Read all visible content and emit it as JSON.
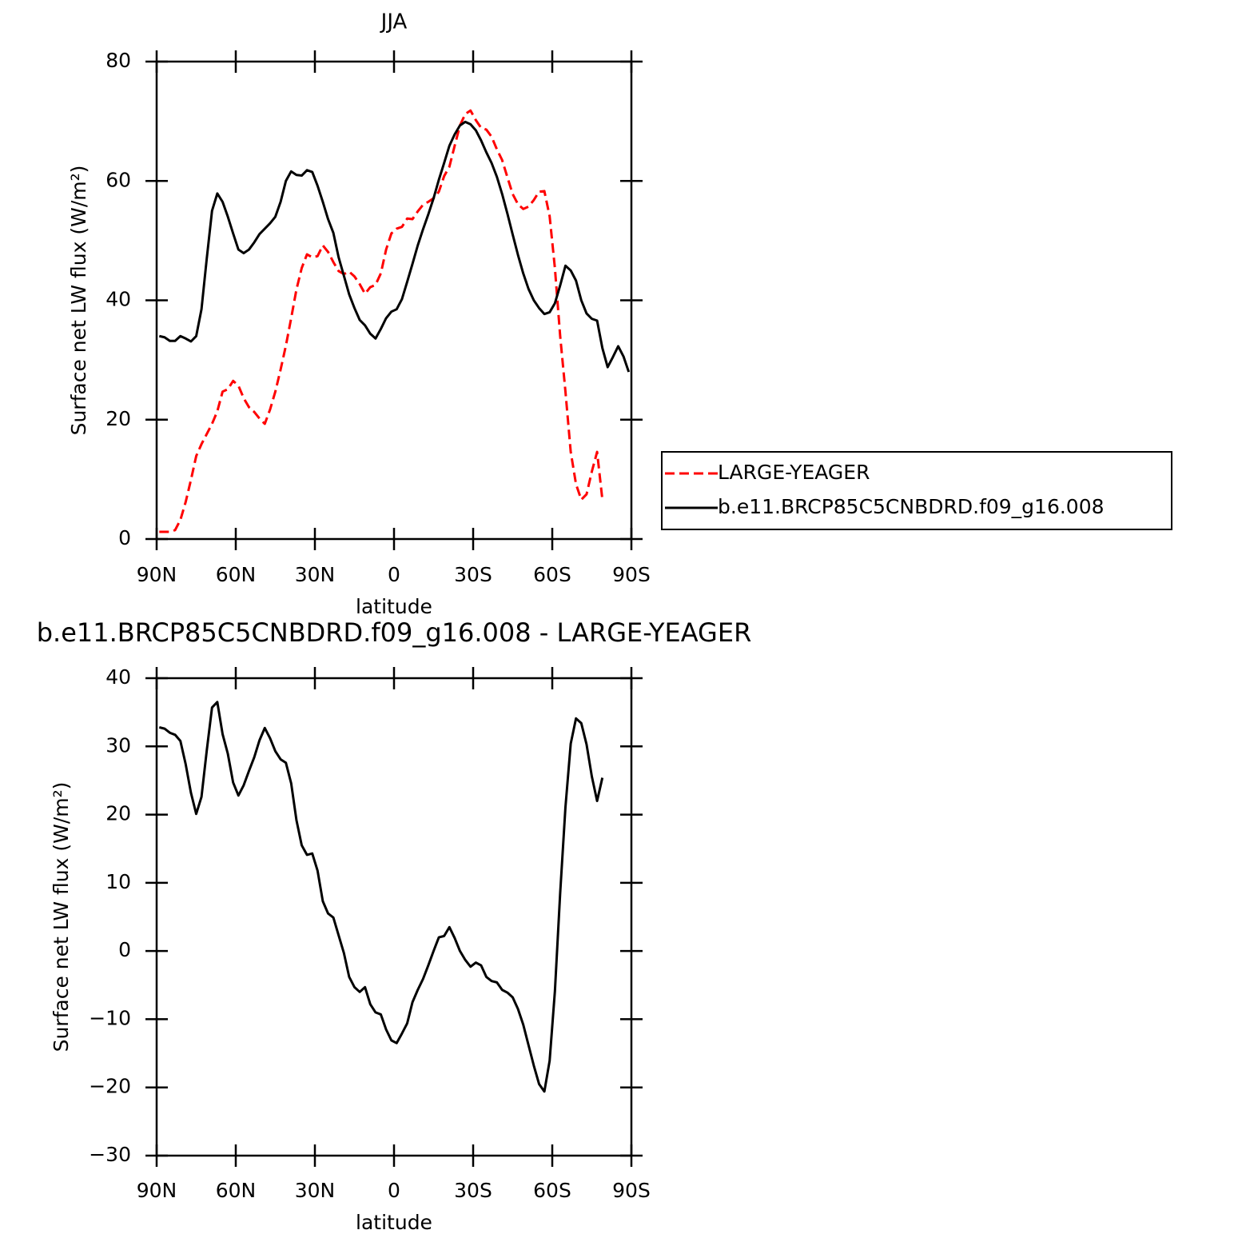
{
  "chart_data": [
    {
      "type": "line",
      "title": "JJA",
      "x_label": "latitude",
      "y_label": "Surface net LW flux (W/m²)",
      "x": [
        89,
        87,
        85,
        83,
        81,
        79,
        77,
        75,
        73,
        71,
        69,
        67,
        65,
        63,
        61,
        59,
        57,
        55,
        53,
        51,
        49,
        47,
        45,
        43,
        41,
        39,
        37,
        35,
        33,
        31,
        29,
        27,
        25,
        23,
        21,
        19,
        17,
        15,
        13,
        11,
        9,
        7,
        5,
        3,
        1,
        -1,
        -3,
        -5,
        -7,
        -9,
        -11,
        -13,
        -15,
        -17,
        -19,
        -21,
        -23,
        -25,
        -27,
        -29,
        -31,
        -33,
        -35,
        -37,
        -39,
        -41,
        -43,
        -45,
        -47,
        -49,
        -51,
        -53,
        -55,
        -57,
        -59,
        -61,
        -63,
        -65,
        -67,
        -69,
        -71,
        -73,
        -75,
        -77,
        -79,
        -81,
        -83,
        -85,
        -87,
        -89
      ],
      "xlim": [
        90,
        -90
      ],
      "xticks": [
        {
          "value": 90,
          "label": "90N"
        },
        {
          "value": 60,
          "label": "60N"
        },
        {
          "value": 30,
          "label": "30N"
        },
        0,
        {
          "value": -30,
          "label": "30S"
        },
        {
          "value": -60,
          "label": "60S"
        },
        {
          "value": -90,
          "label": "90S"
        }
      ],
      "ylim": [
        0,
        80
      ],
      "yticks": [
        0,
        20,
        40,
        60,
        80
      ],
      "legend": "outside-right",
      "series": [
        {
          "name": "LARGE-YEAGER",
          "color": "#ff0000",
          "linestyle": "dashed",
          "values": [
            1.2,
            1.2,
            1.2,
            1.5,
            3.2,
            6.2,
            9.9,
            13.9,
            15.9,
            17.6,
            19.3,
            21.4,
            24.7,
            25.1,
            26.5,
            25.7,
            23.6,
            22.1,
            21.3,
            20.2,
            19.3,
            21.7,
            24.7,
            28.4,
            32.4,
            37.0,
            41.8,
            45.4,
            47.7,
            47.2,
            47.4,
            49.2,
            48.1,
            46.4,
            44.9,
            44.4,
            44.8,
            44.0,
            42.7,
            41.1,
            42.2,
            42.6,
            44.5,
            48.5,
            51.2,
            52.0,
            52.3,
            53.7,
            53.6,
            54.9,
            56.0,
            56.5,
            57.1,
            58.2,
            60.8,
            62.4,
            65.9,
            69.3,
            71.2,
            71.8,
            70.2,
            68.9,
            68.6,
            67.4,
            65.3,
            63.5,
            60.6,
            57.8,
            56.1,
            55.3,
            55.7,
            56.8,
            58.2,
            58.3,
            54.1,
            45.4,
            34.0,
            24.7,
            14.6,
            9.2,
            6.6,
            7.5,
            11.3,
            14.6,
            6.6,
            null,
            null,
            null,
            null,
            null
          ]
        },
        {
          "name": "b.e11.BRCP85C5CNBDRD.f09_g16.008",
          "color": "#000000",
          "linestyle": "solid",
          "values": [
            34.0,
            33.8,
            33.2,
            33.2,
            34.0,
            33.6,
            33.1,
            34.0,
            38.5,
            47.0,
            55.0,
            57.9,
            56.5,
            54.0,
            51.2,
            48.5,
            47.9,
            48.5,
            49.7,
            51.1,
            52.0,
            52.9,
            54.0,
            56.5,
            60.0,
            61.6,
            61.0,
            60.9,
            61.8,
            61.5,
            59.2,
            56.5,
            53.6,
            51.3,
            47.2,
            44.1,
            41.0,
            38.7,
            36.7,
            35.8,
            34.4,
            33.6,
            35.2,
            37.0,
            38.1,
            38.5,
            40.2,
            43.1,
            46.1,
            49.2,
            51.9,
            54.4,
            57.1,
            60.2,
            63.0,
            65.9,
            67.8,
            69.3,
            69.9,
            69.5,
            68.5,
            66.8,
            64.8,
            63.0,
            60.7,
            57.8,
            54.5,
            51.0,
            47.6,
            44.5,
            41.9,
            40.0,
            38.7,
            37.7,
            38.0,
            39.5,
            42.5,
            45.8,
            45.0,
            43.3,
            40.0,
            37.8,
            36.9,
            36.6,
            32.0,
            28.8,
            30.5,
            32.3,
            30.6,
            28.0
          ]
        }
      ]
    },
    {
      "type": "line",
      "title": "b.e11.BRCP85C5CNBDRD.f09_g16.008 - LARGE-YEAGER",
      "x_label": "latitude",
      "y_label": "Surface net LW flux (W/m²)",
      "x": [
        89,
        87,
        85,
        83,
        81,
        79,
        77,
        75,
        73,
        71,
        69,
        67,
        65,
        63,
        61,
        59,
        57,
        55,
        53,
        51,
        49,
        47,
        45,
        43,
        41,
        39,
        37,
        35,
        33,
        31,
        29,
        27,
        25,
        23,
        21,
        19,
        17,
        15,
        13,
        11,
        9,
        7,
        5,
        3,
        1,
        -1,
        -3,
        -5,
        -7,
        -9,
        -11,
        -13,
        -15,
        -17,
        -19,
        -21,
        -23,
        -25,
        -27,
        -29,
        -31,
        -33,
        -35,
        -37,
        -39,
        -41,
        -43,
        -45,
        -47,
        -49,
        -51,
        -53,
        -55,
        -57,
        -59,
        -61,
        -63,
        -65,
        -67,
        -69,
        -71,
        -73,
        -75,
        -77,
        -79,
        -81,
        -83,
        -85,
        -87,
        -89
      ],
      "xlim": [
        90,
        -90
      ],
      "xticks": [
        {
          "value": 90,
          "label": "90N"
        },
        {
          "value": 60,
          "label": "60N"
        },
        {
          "value": 30,
          "label": "30N"
        },
        0,
        {
          "value": -30,
          "label": "30S"
        },
        {
          "value": -60,
          "label": "60S"
        },
        {
          "value": -90,
          "label": "90S"
        }
      ],
      "ylim": [
        -30,
        40
      ],
      "yticks": [
        {
          "value": -30,
          "label": "−30"
        },
        {
          "value": -20,
          "label": "−20"
        },
        {
          "value": -10,
          "label": "−10"
        },
        0,
        10,
        20,
        30,
        40
      ],
      "series": [
        {
          "color": "#000000",
          "linestyle": "solid",
          "values": [
            32.8,
            32.6,
            32.0,
            31.7,
            30.8,
            27.4,
            23.2,
            20.1,
            22.6,
            29.4,
            35.7,
            36.5,
            31.8,
            28.9,
            24.7,
            22.8,
            24.3,
            26.4,
            28.4,
            30.9,
            32.7,
            31.2,
            29.3,
            28.1,
            27.6,
            24.6,
            19.2,
            15.5,
            14.1,
            14.3,
            11.8,
            7.3,
            5.5,
            4.9,
            2.3,
            -0.3,
            -3.8,
            -5.3,
            -6.0,
            -5.3,
            -7.8,
            -9.0,
            -9.3,
            -11.5,
            -13.1,
            -13.5,
            -12.1,
            -10.6,
            -7.5,
            -5.7,
            -4.1,
            -2.1,
            0.0,
            2.0,
            2.2,
            3.5,
            1.9,
            0.0,
            -1.3,
            -2.3,
            -1.7,
            -2.1,
            -3.8,
            -4.4,
            -4.6,
            -5.7,
            -6.1,
            -6.8,
            -8.5,
            -10.8,
            -13.8,
            -16.8,
            -19.5,
            -20.6,
            -16.1,
            -5.9,
            8.5,
            21.1,
            30.4,
            34.1,
            33.4,
            30.3,
            25.6,
            22.0,
            25.4,
            null,
            null,
            null,
            null,
            null
          ]
        }
      ]
    }
  ]
}
